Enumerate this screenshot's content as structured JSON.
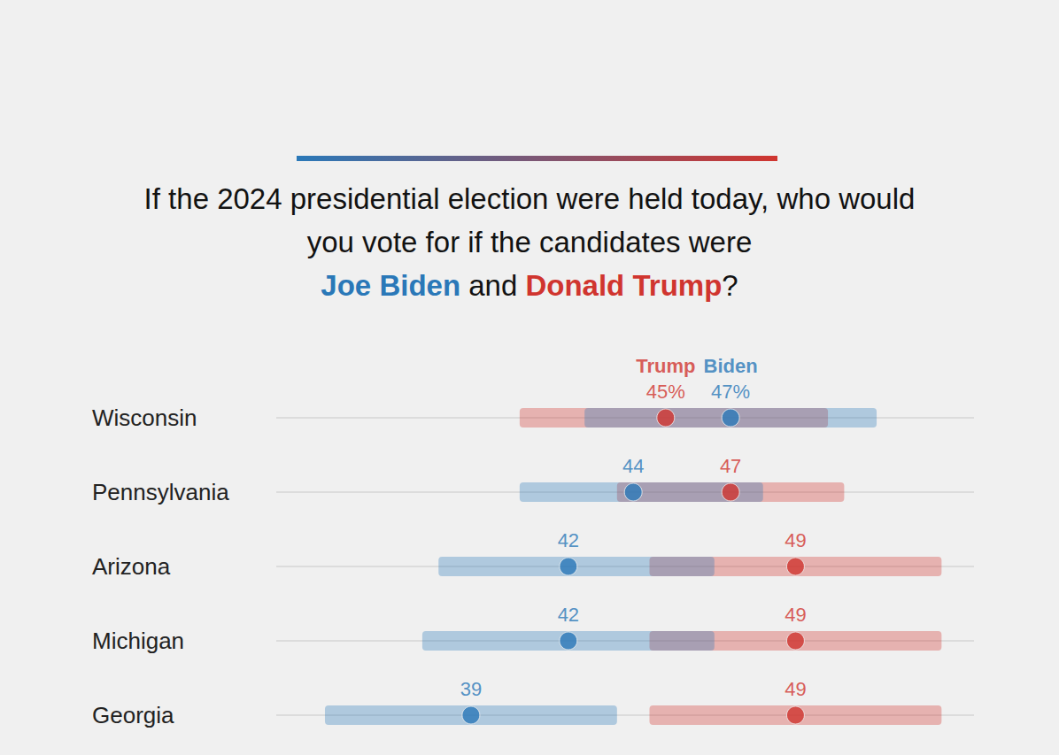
{
  "chart_data": {
    "type": "dot_range",
    "title": "If the 2024 presidential election were held today, who would you vote for if the candidates were Joe Biden and Donald Trump?",
    "categories": [
      "Wisconsin",
      "Pennsylvania",
      "Arizona",
      "Michigan",
      "Georgia"
    ],
    "series": [
      {
        "name": "Trump",
        "full_name": "Donald Trump",
        "color": "#d0352f",
        "values": [
          45,
          47,
          49,
          49,
          49
        ],
        "value_labels": [
          "45%",
          "47",
          "49",
          "49",
          "49"
        ],
        "ranges": [
          [
            40.5,
            50
          ],
          [
            43.5,
            50.5
          ],
          [
            44.5,
            53.5
          ],
          [
            44.5,
            53.5
          ],
          [
            44.5,
            53.5
          ]
        ]
      },
      {
        "name": "Biden",
        "full_name": "Joe Biden",
        "color": "#2a78b8",
        "values": [
          47,
          44,
          42,
          42,
          39
        ],
        "value_labels": [
          "47%",
          "44",
          "42",
          "42",
          "39"
        ],
        "ranges": [
          [
            42.5,
            51.5
          ],
          [
            40.5,
            48
          ],
          [
            38,
            46.5
          ],
          [
            37.5,
            46.5
          ],
          [
            34.5,
            43.5
          ]
        ]
      }
    ],
    "xlim": [
      33,
      54.5
    ],
    "tick_labels": "y",
    "grid": true,
    "data_labels": true
  }
}
